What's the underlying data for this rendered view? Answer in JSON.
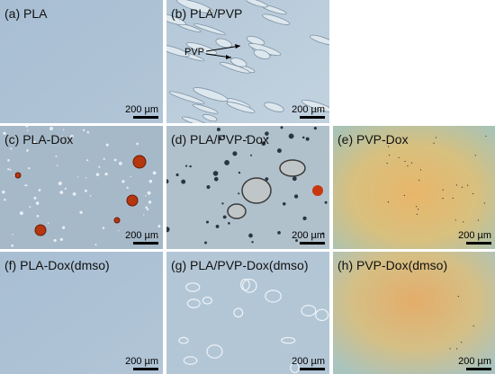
{
  "panels": [
    {
      "label": "(a) PLA",
      "scale_bar": "200 µm"
    },
    {
      "label": "(b) PLA/PVP",
      "scale_bar": "200 µm",
      "annotation": "PVP"
    },
    {
      "label": "(c) PLA-Dox",
      "scale_bar": "200 µm"
    },
    {
      "label": "(d) PLA/PVP-Dox",
      "scale_bar": "200 µm"
    },
    {
      "label": "(e) PVP-Dox",
      "scale_bar": "200 µm"
    },
    {
      "label": "(f) PLA-Dox(dmso)",
      "scale_bar": "200 µm"
    },
    {
      "label": "(g) PLA/PVP-Dox(dmso)",
      "scale_bar": "200 µm"
    },
    {
      "label": "(h) PVP-Dox(dmso)",
      "scale_bar": "200 µm"
    }
  ]
}
